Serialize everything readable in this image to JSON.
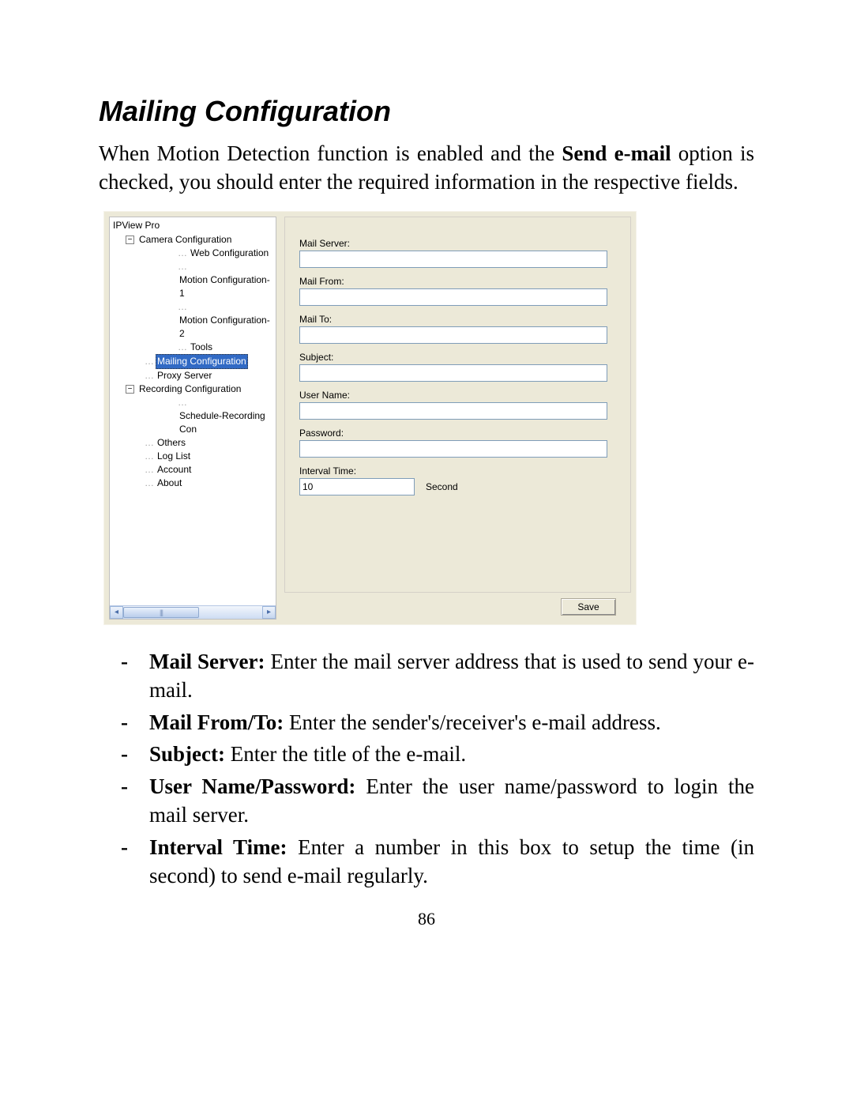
{
  "title": "Mailing Configuration",
  "intro_pre": "When Motion Detection function is enabled and the ",
  "intro_bold": "Send e-mail",
  "intro_post": " option is checked, you should enter the required information in the respective fields.",
  "page_number": "86",
  "screenshot": {
    "bg_color": "#ece9d8",
    "tree": {
      "root": "IPView Pro",
      "selected": "Mailing Configuration",
      "items": [
        {
          "level": 1,
          "expander": "-",
          "label": "Camera Configuration"
        },
        {
          "level": 3,
          "label": "Web Configuration"
        },
        {
          "level": 3,
          "label": "Motion Configuration-1"
        },
        {
          "level": 3,
          "label": "Motion Configuration-2"
        },
        {
          "level": 3,
          "label": "Tools"
        },
        {
          "level": 2,
          "label": "Mailing Configuration",
          "selected": true
        },
        {
          "level": 2,
          "label": "Proxy Server"
        },
        {
          "level": 1,
          "expander": "-",
          "label": "Recording Configuration"
        },
        {
          "level": 3,
          "label": "Schedule-Recording Con"
        },
        {
          "level": 2,
          "label": "Others"
        },
        {
          "level": 2,
          "label": "Log List"
        },
        {
          "level": 2,
          "label": "Account"
        },
        {
          "level": 2,
          "label": "About"
        }
      ]
    },
    "form": {
      "fields": [
        {
          "key": "mail_server",
          "label": "Mail Server:",
          "value": "",
          "type": "text"
        },
        {
          "key": "mail_from",
          "label": "Mail From:",
          "value": "",
          "type": "text"
        },
        {
          "key": "mail_to",
          "label": "Mail To:",
          "value": "",
          "type": "text"
        },
        {
          "key": "subject",
          "label": "Subject:",
          "value": "",
          "type": "text"
        },
        {
          "key": "user_name",
          "label": "User Name:",
          "value": "",
          "type": "text"
        },
        {
          "key": "password",
          "label": "Password:",
          "value": "",
          "type": "password"
        }
      ],
      "interval_label": "Interval Time:",
      "interval_value": "10",
      "interval_unit": "Second",
      "save_label": "Save"
    }
  },
  "bullets": [
    {
      "bold": "Mail Server:",
      "text": " Enter the mail server address that is used to send your e-mail."
    },
    {
      "bold": "Mail From/To:",
      "text": " Enter the sender's/receiver's e-mail address."
    },
    {
      "bold": "Subject:",
      "text": " Enter the title of the e-mail."
    },
    {
      "bold": "User Name/Password:",
      "text": " Enter the user name/password to login the mail server."
    },
    {
      "bold": "Interval Time:",
      "text": " Enter a number in this box to setup the time (in second) to send e-mail regularly."
    }
  ]
}
